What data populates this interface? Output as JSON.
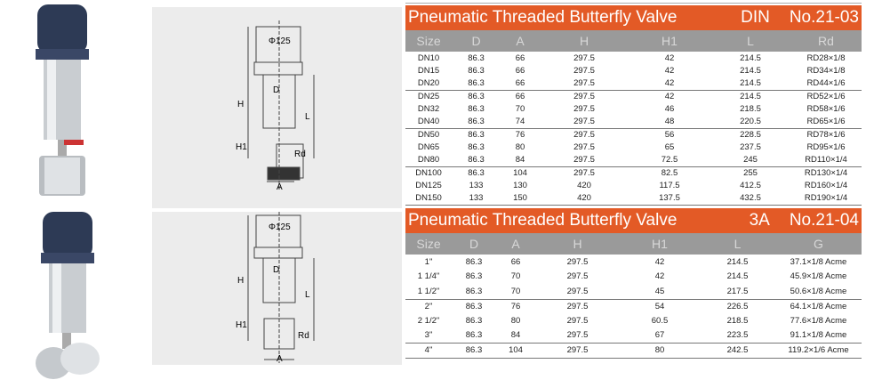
{
  "tables": [
    {
      "title": "Pneumatic Threaded Butterfly Valve",
      "standard": "DIN",
      "number": "No.21-03",
      "columns": [
        "Size",
        "D",
        "A",
        "H",
        "H1",
        "L",
        "Rd"
      ],
      "groups": [
        3,
        3,
        3,
        3
      ],
      "rows": [
        [
          "DN10",
          "86.3",
          "66",
          "297.5",
          "42",
          "214.5",
          "RD28×1/8"
        ],
        [
          "DN15",
          "86.3",
          "66",
          "297.5",
          "42",
          "214.5",
          "RD34×1/8"
        ],
        [
          "DN20",
          "86.3",
          "66",
          "297.5",
          "42",
          "214.5",
          "RD44×1/6"
        ],
        [
          "DN25",
          "86.3",
          "66",
          "297.5",
          "42",
          "214.5",
          "RD52×1/6"
        ],
        [
          "DN32",
          "86.3",
          "70",
          "297.5",
          "46",
          "218.5",
          "RD58×1/6"
        ],
        [
          "DN40",
          "86.3",
          "74",
          "297.5",
          "48",
          "220.5",
          "RD65×1/6"
        ],
        [
          "DN50",
          "86.3",
          "76",
          "297.5",
          "56",
          "228.5",
          "RD78×1/6"
        ],
        [
          "DN65",
          "86.3",
          "80",
          "297.5",
          "65",
          "237.5",
          "RD95×1/6"
        ],
        [
          "DN80",
          "86.3",
          "84",
          "297.5",
          "72.5",
          "245",
          "RD110×1/4"
        ],
        [
          "DN100",
          "86.3",
          "104",
          "297.5",
          "82.5",
          "255",
          "RD130×1/4"
        ],
        [
          "DN125",
          "133",
          "130",
          "420",
          "117.5",
          "412.5",
          "RD160×1/4"
        ],
        [
          "DN150",
          "133",
          "150",
          "420",
          "137.5",
          "432.5",
          "RD190×1/4"
        ]
      ]
    },
    {
      "title": "Pneumatic Threaded Butterfly Valve",
      "standard": "3A",
      "number": "No.21-04",
      "columns": [
        "Size",
        "D",
        "A",
        "H",
        "H1",
        "L",
        "G"
      ],
      "groups": [
        3,
        3,
        1
      ],
      "rows": [
        [
          "1\"",
          "86.3",
          "66",
          "297.5",
          "42",
          "214.5",
          "37.1×1/8 Acme"
        ],
        [
          "1 1/4\"",
          "86.3",
          "70",
          "297.5",
          "42",
          "214.5",
          "45.9×1/8 Acme"
        ],
        [
          "1 1/2\"",
          "86.3",
          "70",
          "297.5",
          "45",
          "217.5",
          "50.6×1/8 Acme"
        ],
        [
          "2\"",
          "86.3",
          "76",
          "297.5",
          "54",
          "226.5",
          "64.1×1/8 Acme"
        ],
        [
          "2 1/2\"",
          "86.3",
          "80",
          "297.5",
          "60.5",
          "218.5",
          "77.6×1/8 Acme"
        ],
        [
          "3\"",
          "86.3",
          "84",
          "297.5",
          "67",
          "223.5",
          "91.1×1/8 Acme"
        ],
        [
          "4\"",
          "86.3",
          "104",
          "297.5",
          "80",
          "242.5",
          "119.2×1/6 Acme"
        ]
      ]
    }
  ],
  "drawings": [
    {
      "diameter": "Φ125",
      "D": "D",
      "H": "H",
      "H1": "H1",
      "L": "L",
      "thread": "Rd",
      "A": "A"
    },
    {
      "diameter": "Φ125",
      "D": "D",
      "H": "H",
      "H1": "H1",
      "L": "L",
      "thread": "Rd",
      "A": "A"
    }
  ],
  "colors": {
    "title_bar": "#e35a26",
    "header_bar": "#9a9a9a",
    "actuator_cap": "#2d3a55"
  }
}
